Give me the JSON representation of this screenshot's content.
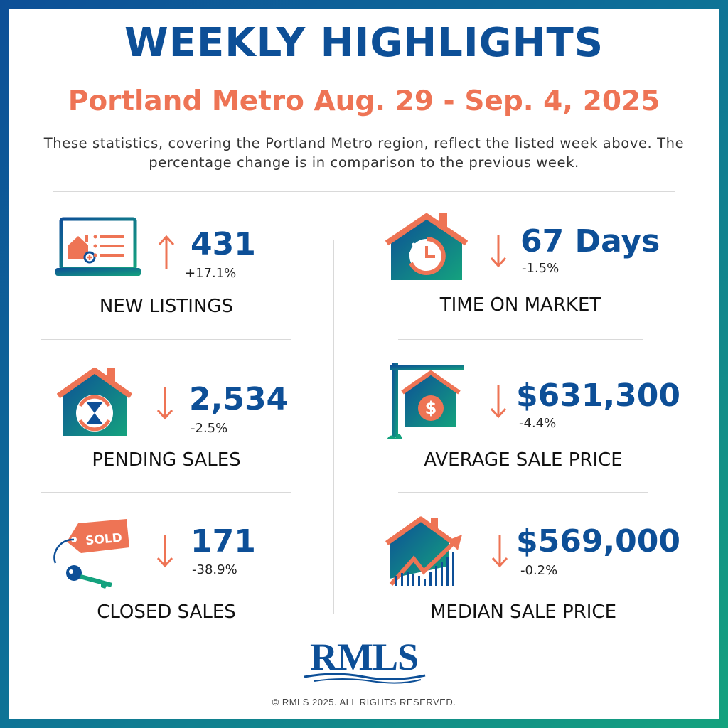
{
  "header": {
    "title": "WEEKLY HIGHLIGHTS",
    "subtitle": "Portland Metro Aug. 29 - Sep. 4, 2025",
    "description": "These statistics, covering the Portland Metro region, reflect the listed week above. The percentage change is in comparison to the previous week."
  },
  "colors": {
    "brand_blue": "#0d4f97",
    "accent_coral": "#ee7455",
    "accent_green": "#14a27e"
  },
  "stats": [
    {
      "label": "NEW LISTINGS",
      "value": "431",
      "change": "+17.1%",
      "direction": "up",
      "icon": "laptop-listing-icon"
    },
    {
      "label": "TIME ON MARKET",
      "value": "67 Days",
      "change": "-1.5%",
      "direction": "down",
      "icon": "house-clock-icon"
    },
    {
      "label": "PENDING SALES",
      "value": "2,534",
      "change": "-2.5%",
      "direction": "down",
      "icon": "house-hourglass-icon"
    },
    {
      "label": "AVERAGE SALE PRICE",
      "value": "$631,300",
      "change": "-4.4%",
      "direction": "down",
      "icon": "house-sign-dollar-icon"
    },
    {
      "label": "CLOSED SALES",
      "value": "171",
      "change": "-38.9%",
      "direction": "down",
      "icon": "sold-tag-key-icon"
    },
    {
      "label": "MEDIAN SALE PRICE",
      "value": "$569,000",
      "change": "-0.2%",
      "direction": "down",
      "icon": "house-chart-icon"
    }
  ],
  "sold_tag_text": "SOLD",
  "footer": {
    "logo_text": "RMLS",
    "copyright": "© RMLS 2025. ALL RIGHTS RESERVED."
  }
}
